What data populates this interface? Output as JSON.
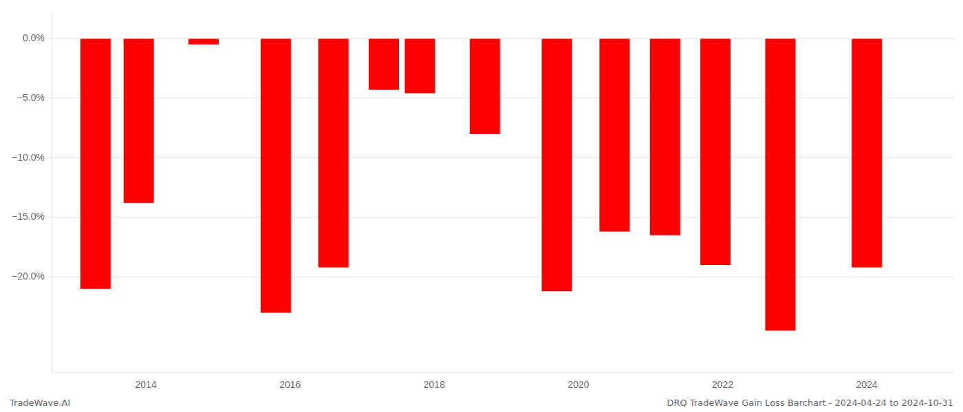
{
  "chart_data": {
    "type": "bar",
    "x": [
      2013.3,
      2013.9,
      2014.8,
      2015.8,
      2016.6,
      2017.3,
      2017.8,
      2018.7,
      2019.7,
      2020.5,
      2021.2,
      2021.9,
      2022.8,
      2024.0
    ],
    "values": [
      -21.0,
      -13.8,
      -0.5,
      -23.0,
      -19.2,
      -4.3,
      -4.6,
      -8.0,
      -21.2,
      -16.2,
      -16.5,
      -19.0,
      -24.5,
      -19.2
    ],
    "color": "#ff0000",
    "xlim": [
      2012.7,
      2025.2
    ],
    "ylim": [
      -28.0,
      2.0
    ],
    "xticks": [
      2014,
      2016,
      2018,
      2020,
      2022,
      2024
    ],
    "yticks": [
      {
        "value": 0.0,
        "label": "0.0%"
      },
      {
        "value": -5.0,
        "label": "−5.0%"
      },
      {
        "value": -10.0,
        "label": "−10.0%"
      },
      {
        "value": -15.0,
        "label": "−15.0%"
      },
      {
        "value": -20.0,
        "label": "−20.0%"
      }
    ],
    "grid": true,
    "annotations": [
      "TradeWave.AI",
      "DRQ TradeWave Gain Loss Barchart - 2024-04-24 to 2024-10-31"
    ]
  }
}
